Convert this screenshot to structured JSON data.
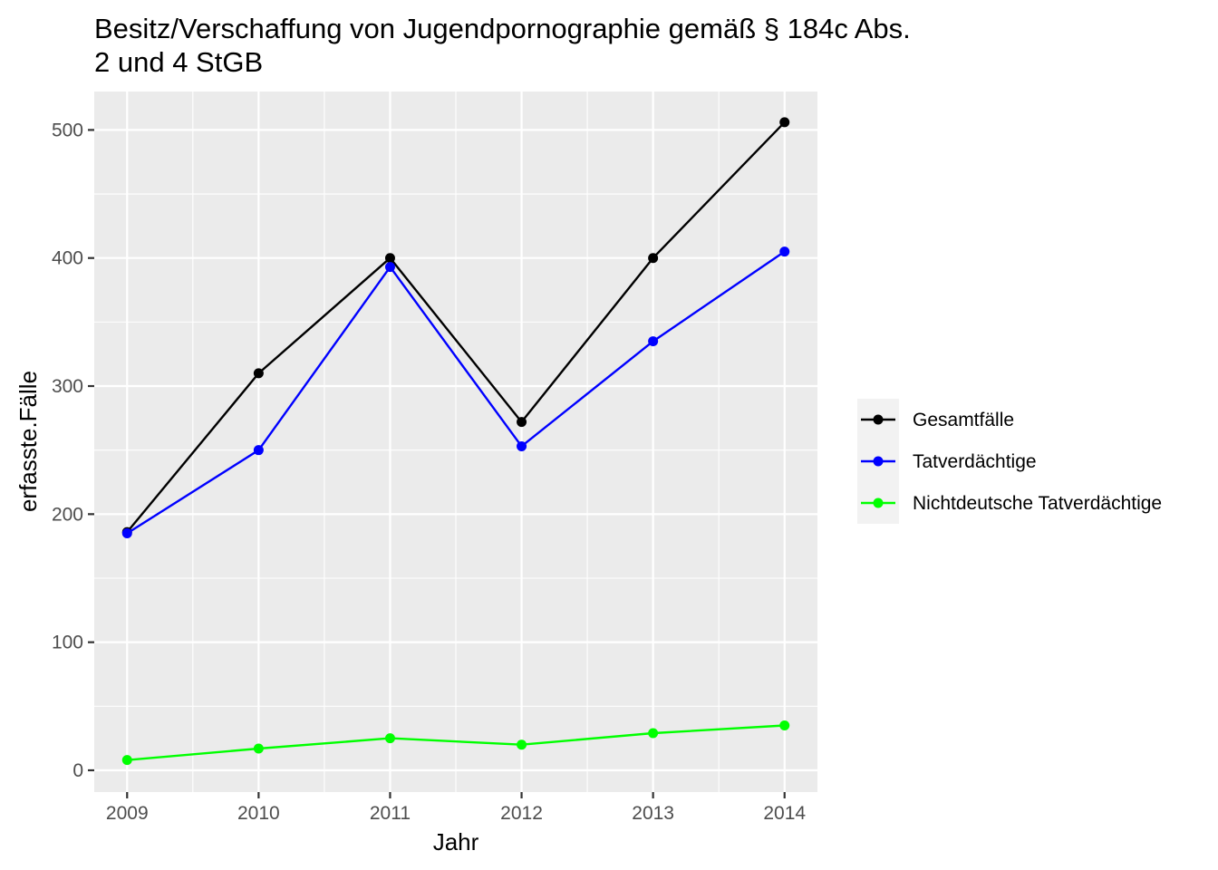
{
  "chart_data": {
    "type": "line",
    "title_lines": [
      "Besitz/Verschaffung von Jugendpornographie gemäß § 184c Abs.",
      "2 und 4 StGB"
    ],
    "xlabel": "Jahr",
    "ylabel": "erfasste.Fälle",
    "x": [
      2009,
      2010,
      2011,
      2012,
      2013,
      2014
    ],
    "x_tick_labels": [
      "2009",
      "2010",
      "2011",
      "2012",
      "2013",
      "2014"
    ],
    "y_ticks": [
      0,
      100,
      200,
      300,
      400,
      500
    ],
    "y_tick_labels": [
      "0",
      "100",
      "200",
      "300",
      "400",
      "500"
    ],
    "ylim": [
      -17,
      530
    ],
    "xlim": [
      2008.75,
      2014.25
    ],
    "grid": true,
    "legend_position": "right",
    "series": [
      {
        "name": "Gesamtfälle",
        "color": "#000000",
        "values": [
          186,
          310,
          400,
          272,
          400,
          506
        ]
      },
      {
        "name": "Tatverdächtige",
        "color": "#0000ff",
        "values": [
          185,
          250,
          393,
          253,
          335,
          405
        ]
      },
      {
        "name": "Nichtdeutsche Tatverdächtige",
        "color": "#00ff00",
        "values": [
          8,
          17,
          25,
          20,
          29,
          35
        ]
      }
    ]
  }
}
